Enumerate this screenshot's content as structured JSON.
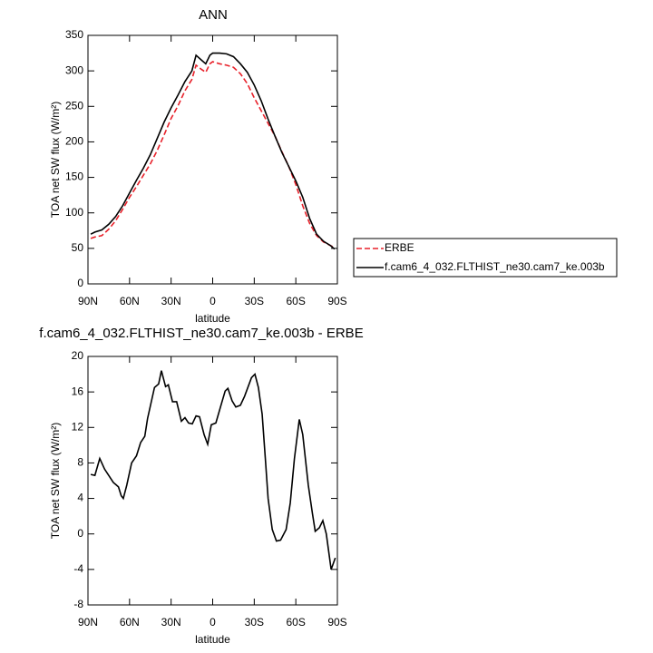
{
  "chart_data": [
    {
      "type": "line",
      "title": "ANN",
      "xlabel": "latitude",
      "ylabel": "TOA net SW flux (W/m²)",
      "x": [
        88,
        85,
        80,
        75,
        70,
        65,
        60,
        55,
        50,
        45,
        40,
        35,
        30,
        25,
        20,
        15,
        12,
        8,
        5,
        2,
        0,
        -5,
        -10,
        -15,
        -20,
        -25,
        -30,
        -35,
        -40,
        -45,
        -50,
        -55,
        -60,
        -65,
        -70,
        -75,
        -80,
        -85,
        -88
      ],
      "series": [
        {
          "name": "ERBE",
          "color": "#e8212a",
          "line_style": "dashed",
          "values": [
            64,
            66,
            68,
            77,
            89,
            105,
            122,
            137,
            153,
            169,
            188,
            210,
            233,
            251,
            272,
            288,
            308,
            302,
            298,
            310,
            313,
            310,
            308,
            305,
            296,
            282,
            262,
            244,
            226,
            208,
            186,
            165,
            140,
            110,
            85,
            68,
            59,
            54,
            51
          ]
        },
        {
          "name": "f.cam6_4_032.FLTHIST_ne30.cam7_ke.003b",
          "color": "#000000",
          "line_style": "solid",
          "values": [
            70,
            73,
            76,
            84,
            95,
            110,
            128,
            146,
            163,
            182,
            205,
            228,
            248,
            266,
            285,
            300,
            322,
            315,
            310,
            322,
            325,
            325,
            324,
            320,
            310,
            298,
            280,
            258,
            232,
            208,
            185,
            165,
            145,
            122,
            92,
            70,
            60,
            54,
            49
          ]
        }
      ],
      "xlim": [
        90,
        -90
      ],
      "xticks": [
        {
          "value": 90,
          "label": "90N"
        },
        {
          "value": 60,
          "label": "60N"
        },
        {
          "value": 30,
          "label": "30N"
        },
        0,
        {
          "value": -30,
          "label": "30S"
        },
        {
          "value": -60,
          "label": "60S"
        },
        {
          "value": -90,
          "label": "90S"
        }
      ],
      "ylim": [
        0,
        350
      ],
      "yticks": [
        0,
        50,
        100,
        150,
        200,
        250,
        300,
        350
      ],
      "legend": "right"
    },
    {
      "type": "line",
      "title": "f.cam6_4_032.FLTHIST_ne30.cam7_ke.003b - ERBE",
      "xlabel": "latitude",
      "ylabel": "TOA net SW flux (W/m²)",
      "x": [
        88,
        85,
        81.5,
        78,
        71.7,
        68,
        66,
        64.5,
        62,
        58.5,
        55,
        52,
        49,
        47,
        42,
        39,
        37,
        34,
        32,
        29,
        26,
        22.6,
        20,
        17.4,
        14.7,
        12,
        9.5,
        6.2,
        3.6,
        1,
        -2.3,
        -6,
        -9,
        -11,
        -14,
        -16.7,
        -20,
        -23,
        -28,
        -30.5,
        -33,
        -35.7,
        -38,
        -40,
        -43,
        -46,
        -49,
        -53,
        -56,
        -59,
        -62.5,
        -65,
        -69,
        -72,
        -74,
        -77,
        -79.5,
        -82,
        -85.5,
        -88.5
      ],
      "values": [
        6.7,
        6.6,
        8.5,
        7.3,
        5.8,
        5.3,
        4.3,
        4,
        5.5,
        8,
        8.8,
        10.3,
        11,
        13,
        16.5,
        16.9,
        18.4,
        16.6,
        16.8,
        14.9,
        14.9,
        12.7,
        13.1,
        12.5,
        12.4,
        13.3,
        13.2,
        11.2,
        10.1,
        12.3,
        12.5,
        14.5,
        16.1,
        16.4,
        15,
        14.3,
        14.5,
        15.5,
        17.6,
        18,
        16.5,
        13.5,
        8.5,
        4,
        0.5,
        -0.8,
        -0.7,
        0.5,
        3.5,
        8.5,
        12.9,
        11.2,
        5.5,
        2.3,
        0.3,
        0.7,
        1.5,
        0,
        -4,
        -2.7
      ],
      "color": "#000000",
      "xlim": [
        90,
        -90
      ],
      "xticks": [
        {
          "value": 90,
          "label": "90N"
        },
        {
          "value": 60,
          "label": "60N"
        },
        {
          "value": 30,
          "label": "30N"
        },
        0,
        {
          "value": -30,
          "label": "30S"
        },
        {
          "value": -60,
          "label": "60S"
        },
        {
          "value": -90,
          "label": "90S"
        }
      ],
      "ylim": [
        -8,
        20
      ],
      "yticks": [
        -8,
        -4,
        0,
        4,
        8,
        12,
        16,
        20
      ]
    }
  ]
}
